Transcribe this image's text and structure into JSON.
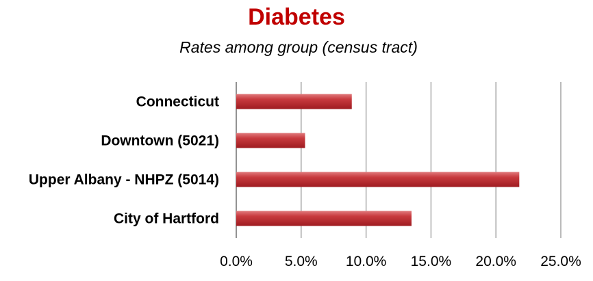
{
  "chart_data": {
    "type": "bar",
    "orientation": "horizontal",
    "title": "Diabetes",
    "subtitle": "Rates among group (census tract)",
    "categories": [
      "Connecticut",
      "Downtown (5021)",
      "Upper Albany - NHPZ (5014)",
      "City of Hartford"
    ],
    "values": [
      0.089,
      0.053,
      0.218,
      0.135
    ],
    "xlim": [
      0,
      0.25
    ],
    "x_ticks": [
      0,
      0.05,
      0.1,
      0.15,
      0.2,
      0.25
    ],
    "x_tick_labels": [
      "0.0%",
      "5.0%",
      "10.0%",
      "15.0%",
      "20.0%",
      "25.0%"
    ],
    "grid": "vertical",
    "legend": "none",
    "bar_color": "#c0262b",
    "title_color": "#c00000",
    "grid_color": "#8c8c8c"
  }
}
